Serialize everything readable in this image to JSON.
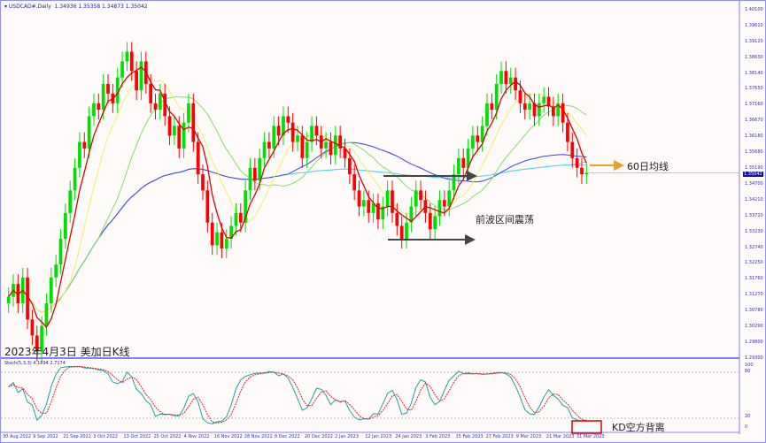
{
  "header": {
    "symbol": "USDCAD#,Daily",
    "ohlc": "1.34936 1.35358 1.34873 1.35042"
  },
  "title_overlay": "2023年4月3日 美加日K线",
  "annotations": {
    "ma60": "60日均线",
    "range": "前波区间震荡",
    "kd": "KD空方背离"
  },
  "indicator": {
    "label": "Stoch(5,3,3) 4.1894 2.7174",
    "levels": [
      "100",
      "80",
      "20",
      "0"
    ]
  },
  "colors": {
    "bull": "#00e000",
    "bear": "#ff0000",
    "ma5": "#e00000",
    "ma10": "#f0f060",
    "ma20": "#80e060",
    "ma60": "#4040e0",
    "ma120": "#40e0f0",
    "ma200": "#d0a0e0",
    "stoch_main": "#20a0a0",
    "stoch_signal": "#e02020",
    "arrow": "#f0a020"
  },
  "chart_data": {
    "type": "candlestick",
    "symbol": "USDCAD",
    "timeframe": "Daily",
    "ylim": [
      1.293,
      1.401
    ],
    "y_ticks": [
      "1.40100",
      "1.39610",
      "1.39120",
      "1.38630",
      "1.38140",
      "1.37650",
      "1.37160",
      "1.36670",
      "1.36180",
      "1.35680",
      "1.35190",
      "1.34700",
      "1.34210",
      "1.33720",
      "1.33230",
      "1.32740",
      "1.32250",
      "1.31760",
      "1.31270",
      "1.30780",
      "1.30290",
      "1.29800",
      "1.29300"
    ],
    "last_price": "1.35042",
    "x_ticks": [
      "30 Aug 2022",
      "9 Sep 2022",
      "21 Sep 2022",
      "3 Oct 2022",
      "13 Oct 2022",
      "25 Oct 2022",
      "4 Nov 2022",
      "16 Nov 2022",
      "28 Nov 2022",
      "8 Dec 2022",
      "20 Dec 2022",
      "2 Jan 2023",
      "12 Jan 2023",
      "24 Jan 2023",
      "3 Feb 2023",
      "15 Feb 2023",
      "27 Feb 2023",
      "9 Mar 2023",
      "21 Mar 2023",
      "31 Mar 2023"
    ],
    "moving_averages": [
      5,
      10,
      20,
      60,
      120,
      200
    ],
    "closes": [
      1.312,
      1.316,
      1.31,
      1.318,
      1.305,
      1.3,
      1.295,
      1.303,
      1.31,
      1.318,
      1.322,
      1.33,
      1.338,
      1.345,
      1.352,
      1.36,
      1.358,
      1.368,
      1.372,
      1.37,
      1.378,
      1.375,
      1.372,
      1.38,
      1.385,
      1.388,
      1.382,
      1.376,
      1.385,
      1.378,
      1.372,
      1.37,
      1.375,
      1.368,
      1.362,
      1.365,
      1.358,
      1.366,
      1.372,
      1.36,
      1.35,
      1.345,
      1.335,
      1.328,
      1.332,
      1.327,
      1.33,
      1.334,
      1.338,
      1.335,
      1.345,
      1.352,
      1.348,
      1.355,
      1.36,
      1.358,
      1.365,
      1.362,
      1.368,
      1.366,
      1.36,
      1.362,
      1.355,
      1.36,
      1.365,
      1.362,
      1.358,
      1.36,
      1.356,
      1.362,
      1.358,
      1.355,
      1.35,
      1.345,
      1.34,
      1.342,
      1.338,
      1.341,
      1.336,
      1.34,
      1.345,
      1.338,
      1.334,
      1.33,
      1.335,
      1.34,
      1.345,
      1.342,
      1.338,
      1.333,
      1.337,
      1.342,
      1.34,
      1.345,
      1.35,
      1.355,
      1.352,
      1.358,
      1.362,
      1.36,
      1.365,
      1.372,
      1.37,
      1.378,
      1.382,
      1.378,
      1.38,
      1.376,
      1.372,
      1.37,
      1.372,
      1.368,
      1.372,
      1.374,
      1.371,
      1.368,
      1.372,
      1.366,
      1.36,
      1.355,
      1.352,
      1.35,
      1.35042
    ]
  }
}
